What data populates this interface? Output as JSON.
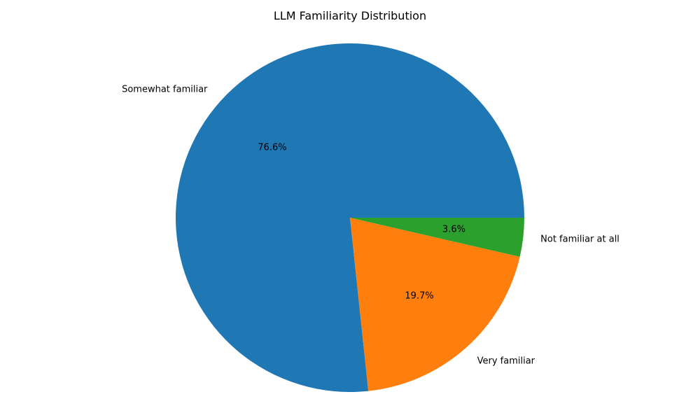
{
  "chart_data": {
    "type": "pie",
    "title": "LLM Familiarity Distribution",
    "categories": [
      "Somewhat familiar",
      "Very familiar",
      "Not familiar at all"
    ],
    "values": [
      76.6,
      19.7,
      3.6
    ],
    "percent_labels": [
      "76.6%",
      "19.7%",
      "3.6%"
    ],
    "colors": [
      "#1f77b4",
      "#ff7f0e",
      "#2ca02c"
    ],
    "start_angle": "3 o'clock",
    "direction": "counterclockwise",
    "legend": "none"
  }
}
